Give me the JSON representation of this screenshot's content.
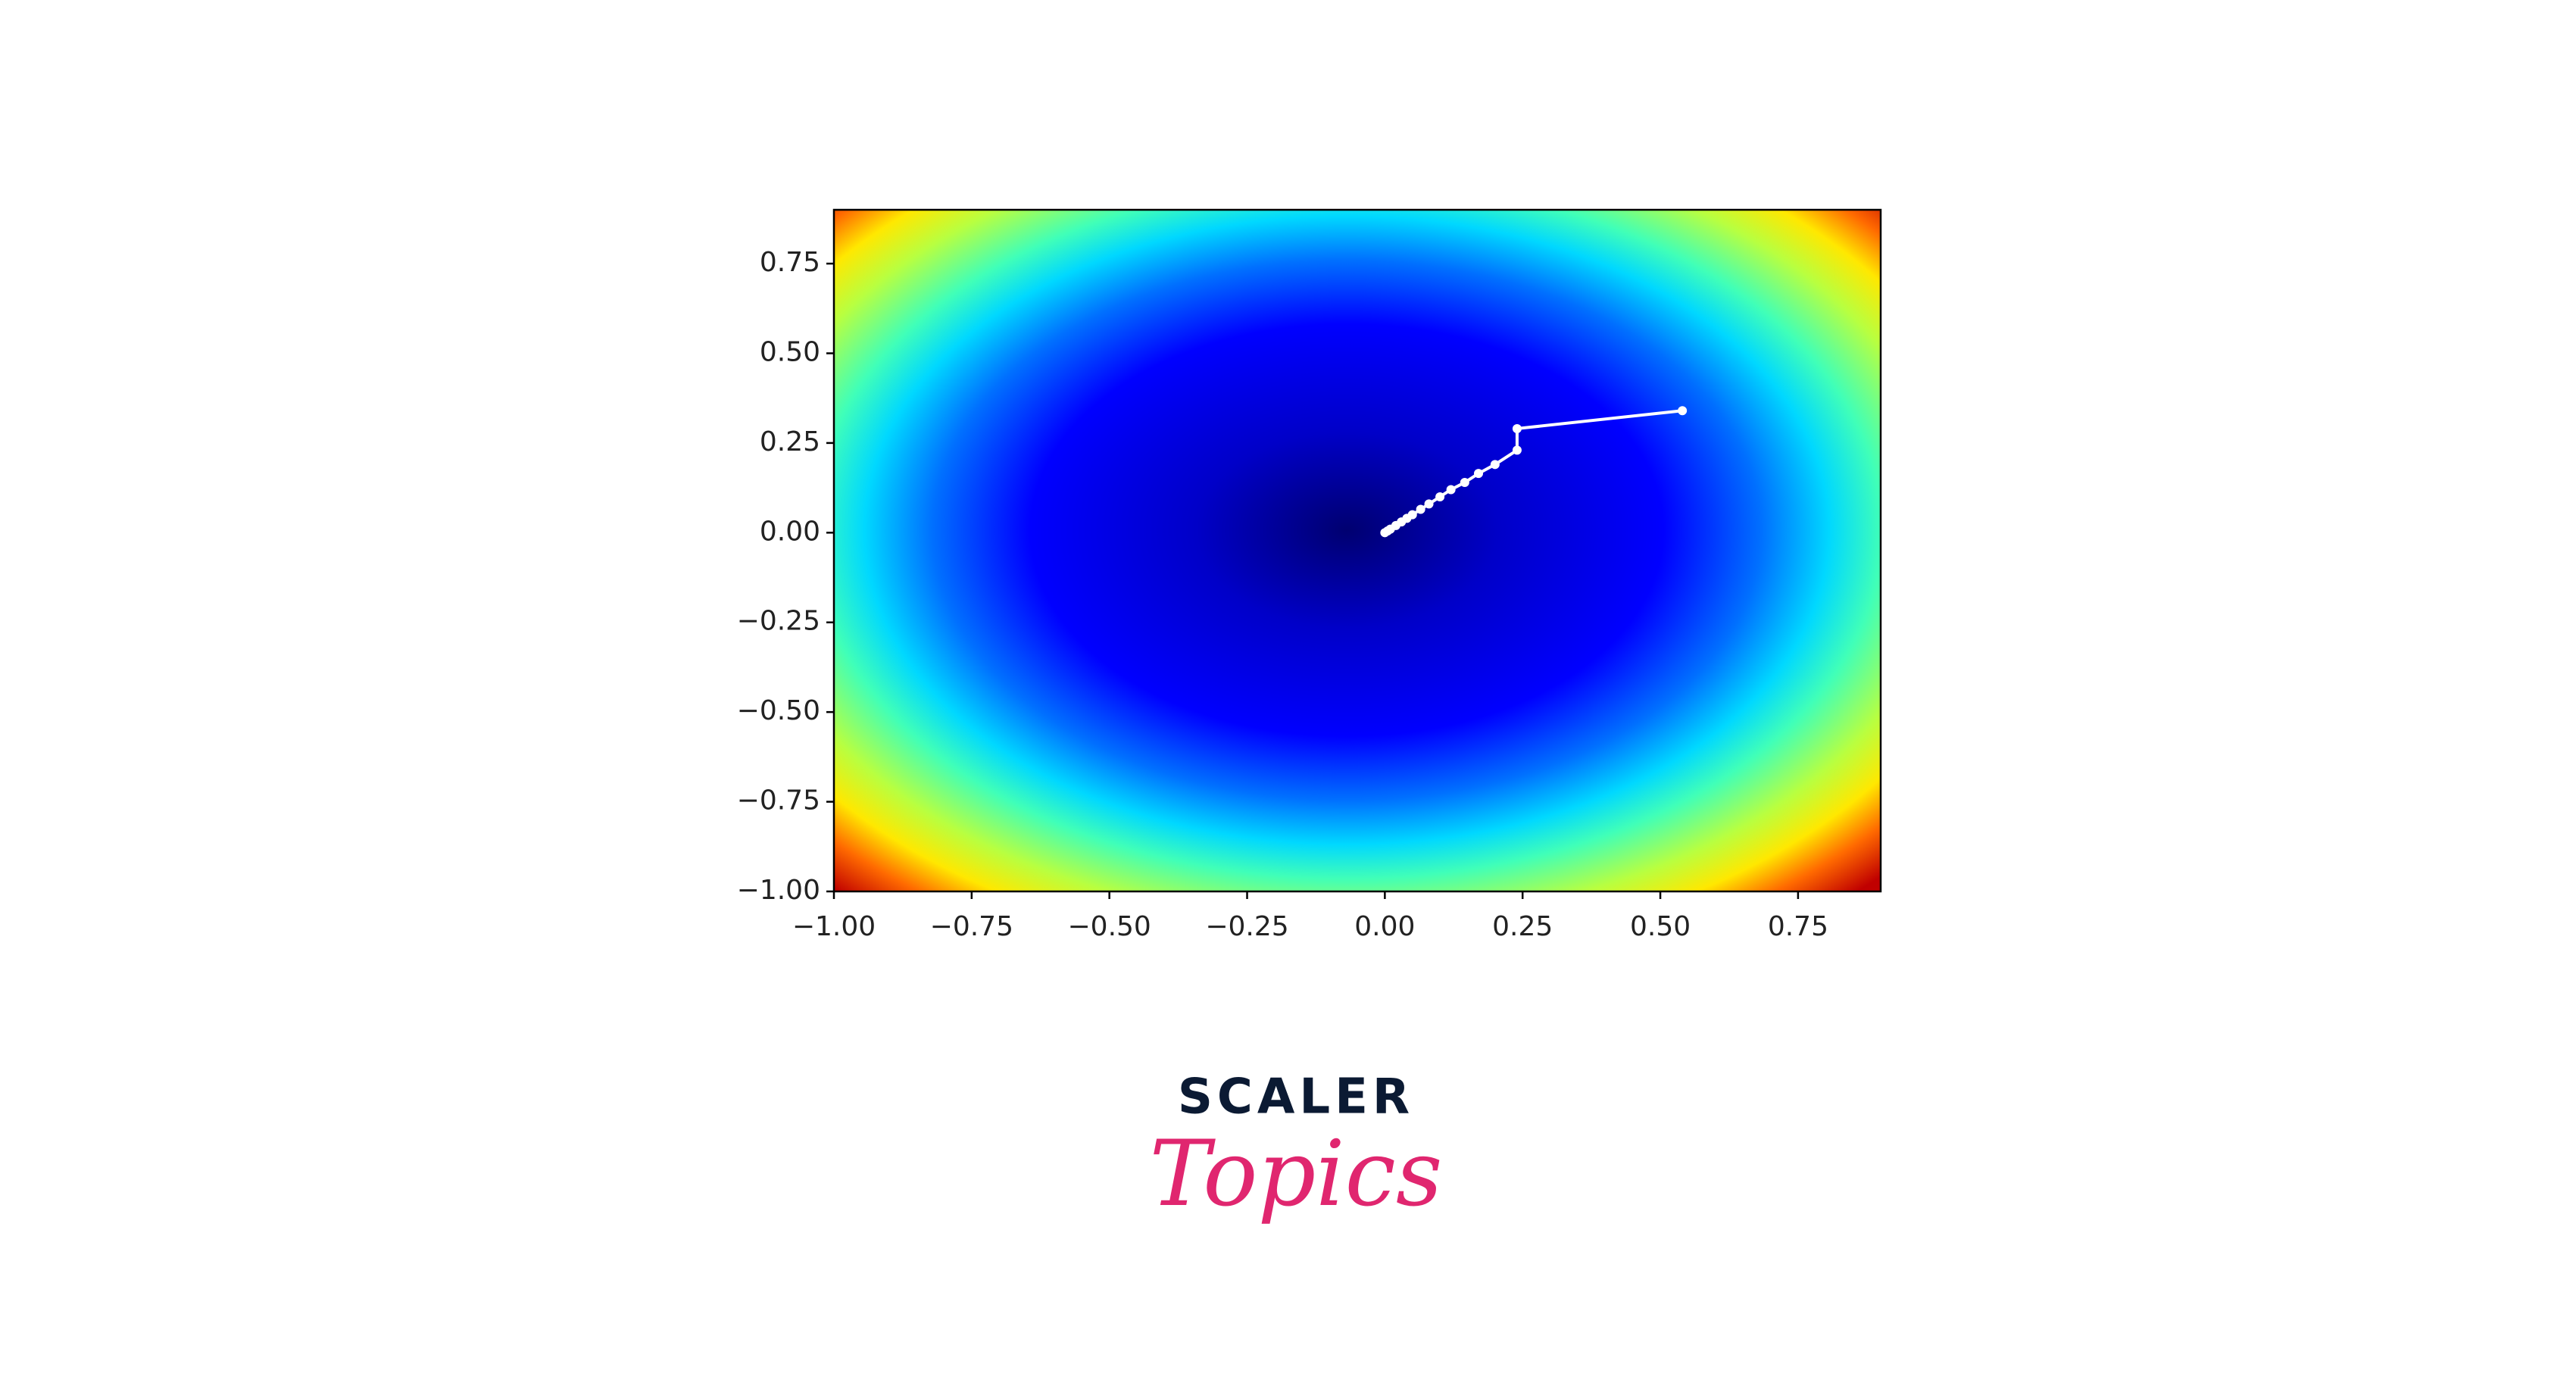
{
  "chart_data": {
    "type": "line",
    "x": [
      0.54,
      0.24,
      0.24,
      0.2,
      0.17,
      0.145,
      0.12,
      0.1,
      0.08,
      0.065,
      0.05,
      0.04,
      0.03,
      0.02,
      0.01,
      0.005,
      0
    ],
    "series": [
      {
        "color": "#ffffff",
        "values": [
          0.34,
          0.29,
          0.23,
          0.19,
          0.165,
          0.14,
          0.12,
          0.1,
          0.08,
          0.065,
          0.05,
          0.04,
          0.03,
          0.02,
          0.01,
          0.005,
          0
        ]
      }
    ],
    "xlim": [
      -1,
      0.9
    ],
    "ylim": [
      -1,
      0.9
    ],
    "xticks": [
      {
        "value": -1,
        "label": "−1.00"
      },
      {
        "value": -0.75,
        "label": "−0.75"
      },
      {
        "value": -0.5,
        "label": "−0.50"
      },
      {
        "value": -0.25,
        "label": "−0.25"
      },
      {
        "value": 0,
        "label": "0.00"
      },
      {
        "value": 0.25,
        "label": "0.25"
      },
      {
        "value": 0.5,
        "label": "0.50"
      },
      {
        "value": 0.75,
        "label": "0.75"
      }
    ],
    "yticks": [
      {
        "value": -1,
        "label": "−1.00"
      },
      {
        "value": -0.75,
        "label": "−0.75"
      },
      {
        "value": -0.5,
        "label": "−0.50"
      },
      {
        "value": -0.25,
        "label": "−0.25"
      },
      {
        "value": 0,
        "label": "0.00"
      },
      {
        "value": 0.25,
        "label": "0.25"
      },
      {
        "value": 0.5,
        "label": "0.50"
      },
      {
        "value": 0.75,
        "label": "0.75"
      }
    ],
    "grid": false
  },
  "logo": {
    "brand": "SCALER",
    "product": "Topics"
  }
}
